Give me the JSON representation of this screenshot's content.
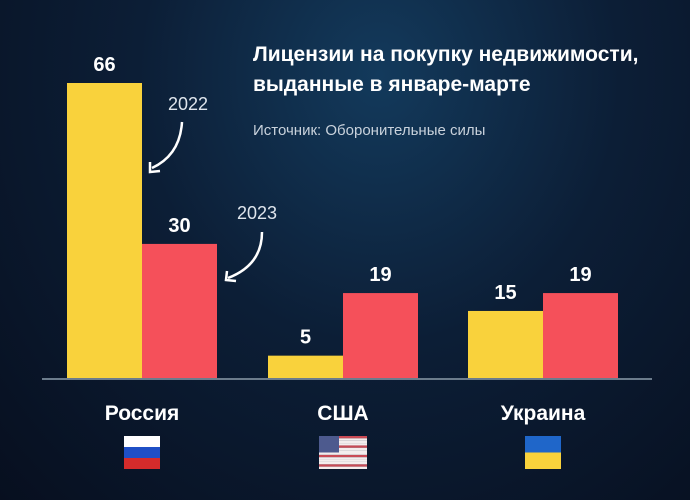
{
  "chart_data": {
    "type": "bar",
    "title": "Лицензии на покупку недвижимости, выданные в январе-марте",
    "title_lines": [
      "Лицензии на покупку недвижимости,",
      "выданные в январе-марте"
    ],
    "subtitle": "Источник: Оборонительные силы",
    "categories": [
      "Россия",
      "США",
      "Украина"
    ],
    "flags": [
      "russia-flag",
      "usa-flag",
      "ukraine-flag"
    ],
    "series": [
      {
        "name": "2022",
        "color": "#f9d23c",
        "values": [
          66,
          5,
          15
        ]
      },
      {
        "name": "2023",
        "color": "#f5505a",
        "values": [
          30,
          19,
          19
        ]
      }
    ],
    "annotations": [
      "2022",
      "2023"
    ],
    "ylim": [
      0,
      66
    ],
    "grid": false,
    "xlabel": "",
    "ylabel": ""
  }
}
